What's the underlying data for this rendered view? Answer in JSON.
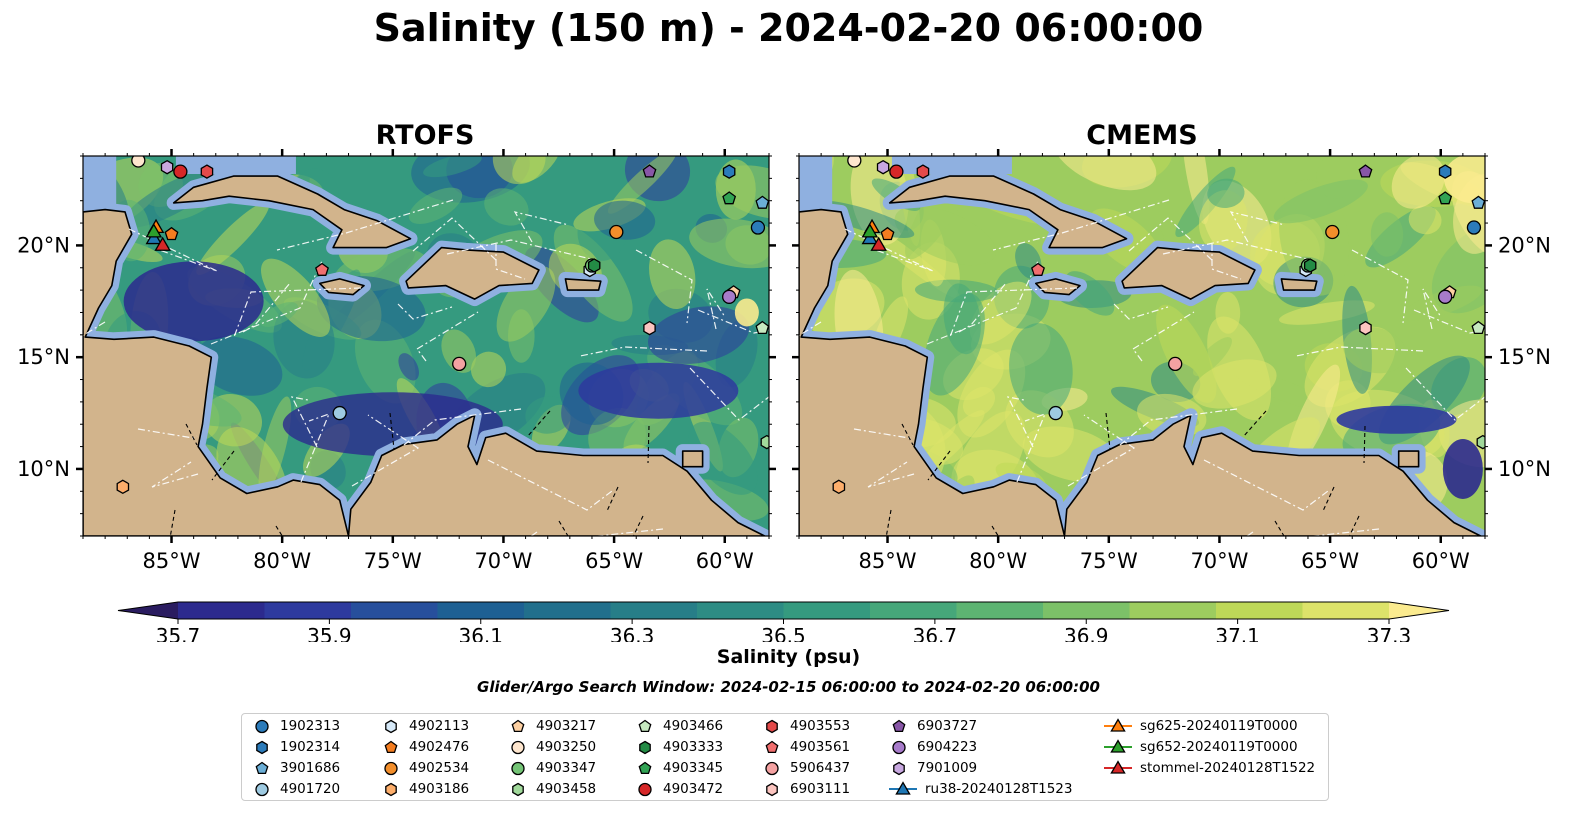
{
  "title": "Salinity (150 m) - 2024-02-20 06:00:00",
  "panels": [
    {
      "name": "RTOFS"
    },
    {
      "name": "CMEMS"
    }
  ],
  "colorbar": {
    "label": "Salinity (psu)",
    "ticks": [
      "35.7",
      "35.9",
      "36.1",
      "36.3",
      "36.5",
      "36.7",
      "36.9",
      "37.1",
      "37.3"
    ],
    "colors": [
      "#2a1c60",
      "#2c2a8e",
      "#2e3a9e",
      "#274f9c",
      "#1e6093",
      "#216f8c",
      "#277e88",
      "#2d8c84",
      "#359a7f",
      "#46a77a",
      "#5db472",
      "#7cc168",
      "#9dcc5f",
      "#bed858",
      "#dde36a",
      "#fbeb8f"
    ]
  },
  "search_window": "Glider/Argo Search Window: 2024-02-15 06:00:00 to 2024-02-20 06:00:00",
  "axes": {
    "lon_ticks": [
      "85°W",
      "80°W",
      "75°W",
      "70°W",
      "65°W",
      "60°W"
    ],
    "lat_ticks": [
      "20°N",
      "15°N",
      "10°N"
    ]
  },
  "map_colors": {
    "land": "#d2b48c",
    "shelf": "#8fb0e0",
    "grid": "#ffffff"
  },
  "chart_data": {
    "type": "heatmap",
    "title": "Salinity (150 m) - 2024-02-20 06:00:00",
    "variable": "Salinity (psu)",
    "depth_m": 150,
    "time": "2024-02-20 06:00:00",
    "colorbar_range": [
      35.7,
      37.3
    ],
    "lon_range": [
      -89,
      -58
    ],
    "lat_range": [
      7,
      24
    ],
    "models": [
      "RTOFS",
      "CMEMS"
    ],
    "observations": [
      {
        "id": "1902313",
        "color": "#2b7bba",
        "shape": "circle",
        "lon": -58.5,
        "lat": 20.8
      },
      {
        "id": "1902314",
        "color": "#2b7bba",
        "shape": "hexagon",
        "lon": -59.8,
        "lat": 23.3
      },
      {
        "id": "3901686",
        "color": "#6baed6",
        "shape": "pentagon",
        "lon": -58.3,
        "lat": 21.9
      },
      {
        "id": "4901720",
        "color": "#9ecae1",
        "shape": "circle",
        "lon": -77.4,
        "lat": 12.5
      },
      {
        "id": "4902113",
        "color": "#d6e9f8",
        "shape": "hexagon",
        "lon": -66.1,
        "lat": 18.9
      },
      {
        "id": "4902476",
        "color": "#f47d20",
        "shape": "pentagon",
        "lon": -85.0,
        "lat": 20.5
      },
      {
        "id": "4902534",
        "color": "#f28e2b",
        "shape": "circle",
        "lon": -64.9,
        "lat": 20.6
      },
      {
        "id": "4903186",
        "color": "#fdae6b",
        "shape": "hexagon",
        "lon": -87.2,
        "lat": 9.2
      },
      {
        "id": "4903217",
        "color": "#fdd0a2",
        "shape": "pentagon",
        "lon": -59.6,
        "lat": 17.9
      },
      {
        "id": "4903250",
        "color": "#fee6ce",
        "shape": "circle",
        "lon": -86.5,
        "lat": 23.8
      },
      {
        "id": "4903347",
        "color": "#74c476",
        "shape": "circle",
        "lon": -66.0,
        "lat": 19.1
      },
      {
        "id": "4903458",
        "color": "#a1d99b",
        "shape": "hexagon",
        "lon": -58.1,
        "lat": 11.2
      },
      {
        "id": "4903466",
        "color": "#c7e9c0",
        "shape": "pentagon",
        "lon": -58.3,
        "lat": 16.3
      },
      {
        "id": "4903333",
        "color": "#238b45",
        "shape": "hexagon",
        "lon": -65.9,
        "lat": 19.1
      },
      {
        "id": "4903345",
        "color": "#31a354",
        "shape": "pentagon",
        "lon": -59.8,
        "lat": 22.1
      },
      {
        "id": "4903472",
        "color": "#d62728",
        "shape": "circle",
        "lon": -84.6,
        "lat": 23.3
      },
      {
        "id": "4903553",
        "color": "#e34a4a",
        "shape": "hexagon",
        "lon": -83.4,
        "lat": 23.3
      },
      {
        "id": "4903561",
        "color": "#f06e6e",
        "shape": "pentagon",
        "lon": -78.2,
        "lat": 18.9
      },
      {
        "id": "5906437",
        "color": "#f4a2a2",
        "shape": "circle",
        "lon": -72.0,
        "lat": 14.7
      },
      {
        "id": "6903111",
        "color": "#fcc5c0",
        "shape": "hexagon",
        "lon": -63.4,
        "lat": 16.3
      },
      {
        "id": "6903727",
        "color": "#8856a7",
        "shape": "pentagon",
        "lon": -63.4,
        "lat": 23.3
      },
      {
        "id": "6904223",
        "color": "#a77bca",
        "shape": "circle",
        "lon": -59.8,
        "lat": 17.7
      },
      {
        "id": "7901009",
        "color": "#c8a8e0",
        "shape": "hexagon",
        "lon": -85.2,
        "lat": 23.5
      }
    ],
    "gliders": [
      {
        "id": "ru38-20240128T1523",
        "color": "#1f77b4",
        "lon": -85.8,
        "lat": 20.3
      },
      {
        "id": "sg625-20240119T0000",
        "color": "#ff7f0e",
        "lon": -85.7,
        "lat": 20.8
      },
      {
        "id": "sg652-20240119T0000",
        "color": "#2ca02c",
        "lon": -85.8,
        "lat": 20.6
      },
      {
        "id": "stommel-20240128T1522",
        "color": "#d62728",
        "lon": -85.4,
        "lat": 20.0
      }
    ]
  }
}
